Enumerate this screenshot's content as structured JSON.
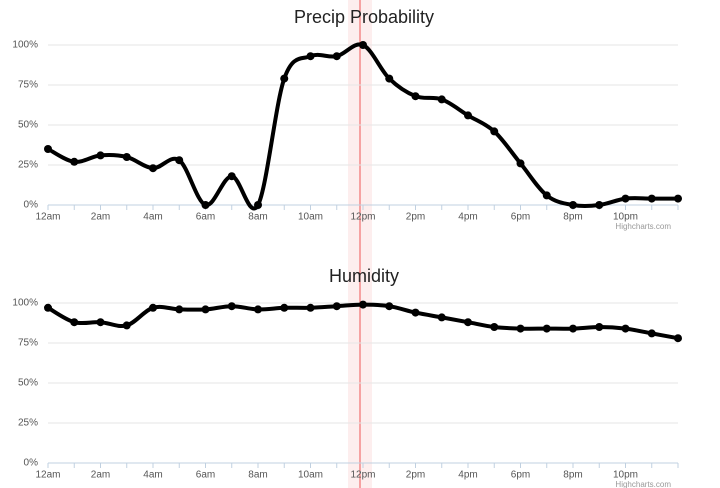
{
  "chart_data": [
    {
      "type": "line",
      "title": "Precip Probability",
      "categories": [
        "12am",
        null,
        "2am",
        null,
        "4am",
        null,
        "6am",
        null,
        "8am",
        null,
        "10am",
        null,
        "12pm",
        null,
        "2pm",
        null,
        "4pm",
        null,
        "6pm",
        null,
        "8pm",
        null,
        "10pm",
        null,
        null
      ],
      "series": [
        {
          "name": "Precip Probability",
          "color": "#000000",
          "values": [
            35,
            27,
            31,
            30,
            23,
            28,
            0,
            18,
            0,
            79,
            93,
            93,
            100,
            79,
            68,
            66,
            56,
            46,
            26,
            6,
            0,
            0,
            4,
            4,
            4
          ]
        }
      ],
      "ylim": [
        0,
        100
      ],
      "yticks": [
        {
          "value": 0,
          "label": "0%"
        },
        {
          "value": 25,
          "label": "25%"
        },
        {
          "value": 50,
          "label": "50%"
        },
        {
          "value": 75,
          "label": "75%"
        },
        {
          "value": 100,
          "label": "100%"
        }
      ],
      "grid": true,
      "credits": "Highcharts.com"
    },
    {
      "type": "line",
      "title": "Humidity",
      "categories": [
        "12am",
        null,
        "2am",
        null,
        "4am",
        null,
        "6am",
        null,
        "8am",
        null,
        "10am",
        null,
        "12pm",
        null,
        "2pm",
        null,
        "4pm",
        null,
        "6pm",
        null,
        "8pm",
        null,
        "10pm",
        null,
        null
      ],
      "series": [
        {
          "name": "Humidity",
          "color": "#000000",
          "values": [
            97,
            88,
            88,
            86,
            97,
            96,
            96,
            98,
            96,
            97,
            97,
            98,
            99,
            98,
            94,
            91,
            88,
            85,
            84,
            84,
            84,
            85,
            84,
            81,
            78
          ]
        }
      ],
      "ylim": [
        0,
        100
      ],
      "yticks": [
        {
          "value": 0,
          "label": "0%"
        },
        {
          "value": 25,
          "label": "25%"
        },
        {
          "value": 50,
          "label": "50%"
        },
        {
          "value": 75,
          "label": "75%"
        },
        {
          "value": 100,
          "label": "100%"
        }
      ],
      "grid": true,
      "credits": "Highcharts.com"
    }
  ]
}
